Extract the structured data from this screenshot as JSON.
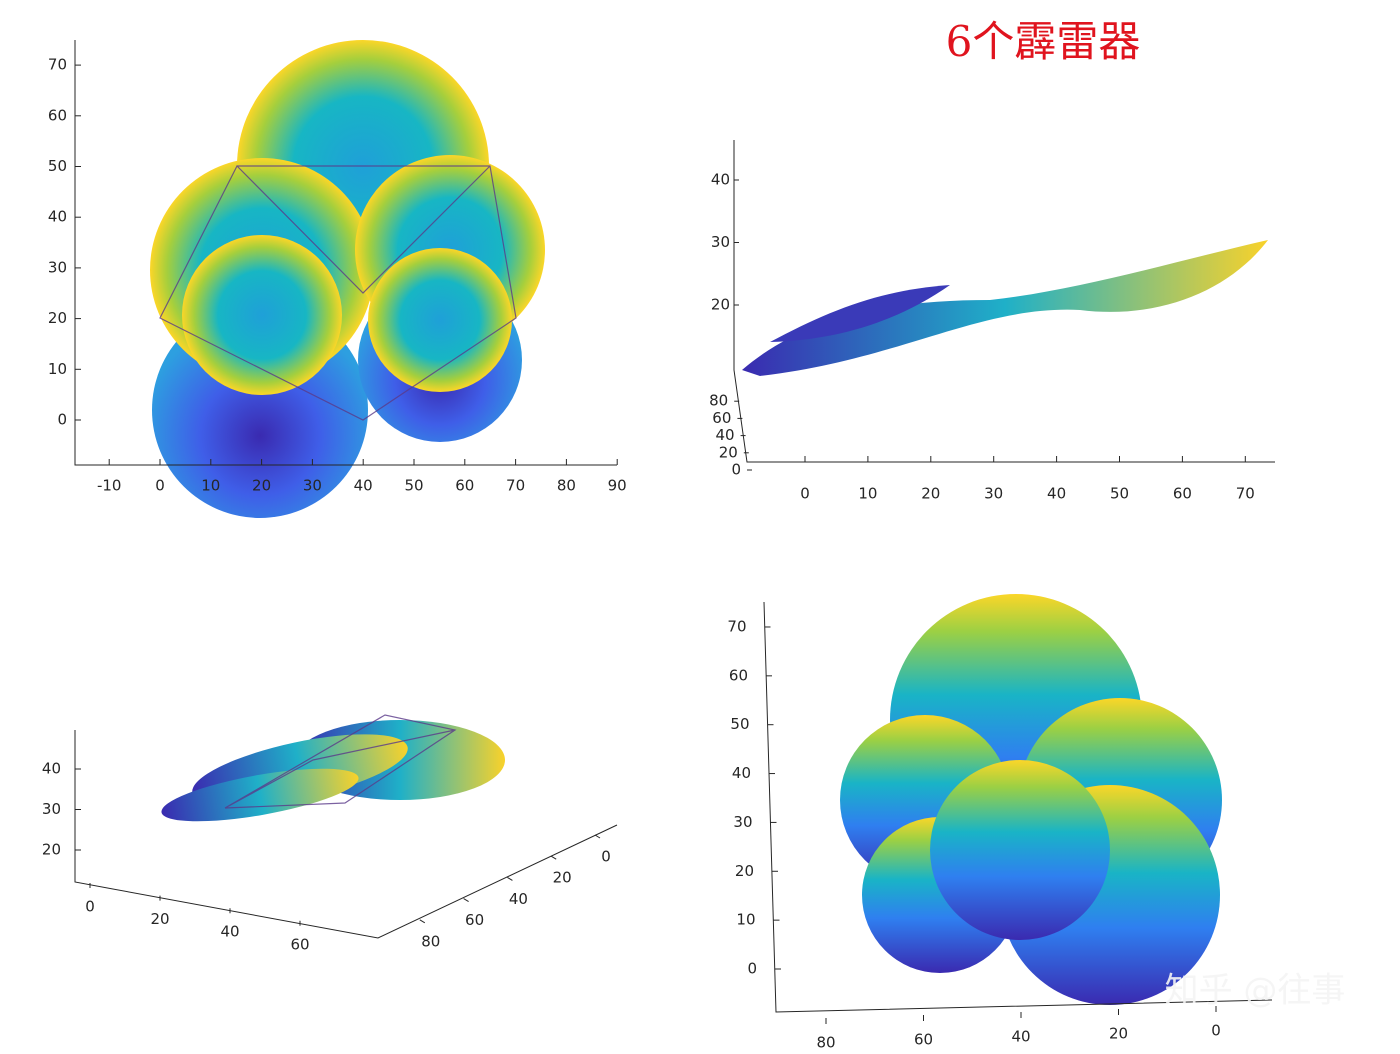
{
  "title": "6个霹雷器",
  "watermark": "知乎 @往事",
  "plots": [
    {
      "x_ticks": [
        -10,
        0,
        10,
        20,
        30,
        40,
        50,
        60,
        70,
        80,
        90
      ],
      "y_ticks": [
        0,
        10,
        20,
        30,
        40,
        50,
        60,
        70
      ]
    },
    {
      "x_ticks": [
        0,
        10,
        20,
        30,
        40,
        50,
        60,
        70
      ],
      "y_ticks": [
        0,
        20,
        40,
        60,
        80
      ],
      "z_ticks": [
        20,
        30,
        40
      ]
    },
    {
      "x_ticks": [
        0,
        20,
        40,
        60
      ],
      "y_ticks": [
        0,
        20,
        40,
        60,
        80
      ],
      "z_ticks": [
        20,
        30,
        40
      ]
    },
    {
      "x_ticks": [
        80,
        60,
        40,
        20,
        0
      ],
      "y_ticks": [
        0,
        10,
        20,
        30,
        40,
        50,
        60,
        70
      ]
    }
  ]
}
